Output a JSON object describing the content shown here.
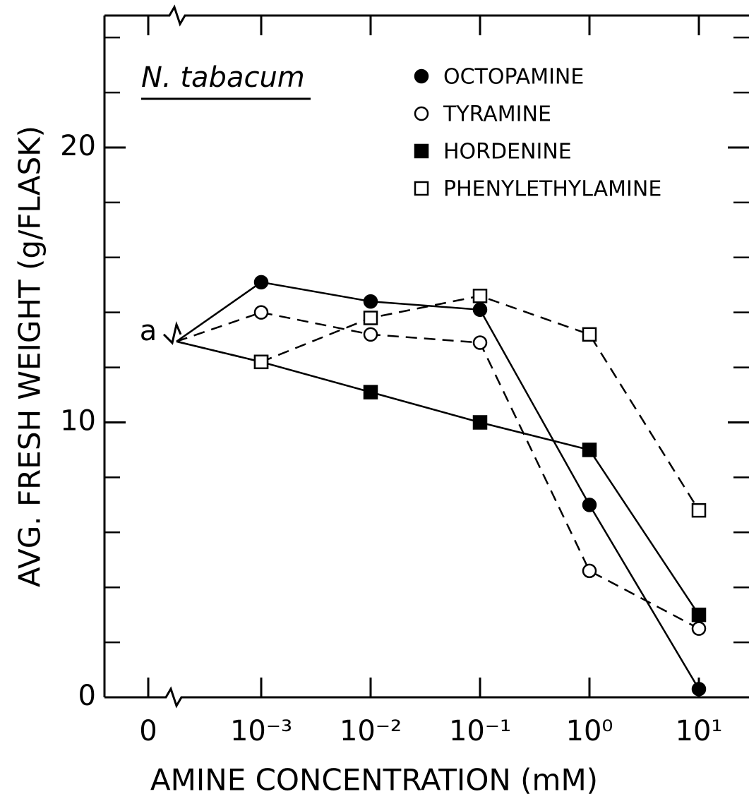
{
  "chart_data": {
    "type": "line",
    "title": "N. tabacum",
    "xlabel": "AMINE CONCENTRATION (mM)",
    "ylabel": "AVG. FRESH WEIGHT (g/FLASK)",
    "categories": [
      "0",
      "10⁻³",
      "10⁻²",
      "10⁻¹",
      "10⁰",
      "10¹"
    ],
    "control": {
      "label": "a",
      "value": 13.2
    },
    "series": [
      {
        "name": "OCTOPAMINE",
        "color": "#000000",
        "marker": "circle",
        "filled": true,
        "dashed": false,
        "values": [
          null,
          15.1,
          14.4,
          14.1,
          7.0,
          0.3
        ]
      },
      {
        "name": "TYRAMINE",
        "color": "#000000",
        "marker": "circle",
        "filled": false,
        "dashed": true,
        "values": [
          null,
          14.0,
          13.2,
          12.9,
          4.6,
          2.5
        ]
      },
      {
        "name": "HORDENINE",
        "color": "#000000",
        "marker": "square",
        "filled": true,
        "dashed": false,
        "values": [
          null,
          12.2,
          11.1,
          10.0,
          9.0,
          3.0
        ]
      },
      {
        "name": "PHENYLETHYLAMINE",
        "color": "#000000",
        "marker": "square",
        "filled": false,
        "dashed": true,
        "values": [
          null,
          12.2,
          13.8,
          14.6,
          13.2,
          6.8
        ]
      }
    ],
    "ylim": [
      0,
      24.8
    ],
    "yticks": [
      0,
      10,
      20
    ],
    "minor_yticks": [
      2,
      4,
      6,
      8,
      12,
      14,
      16,
      18,
      22,
      24
    ],
    "grid": false
  }
}
